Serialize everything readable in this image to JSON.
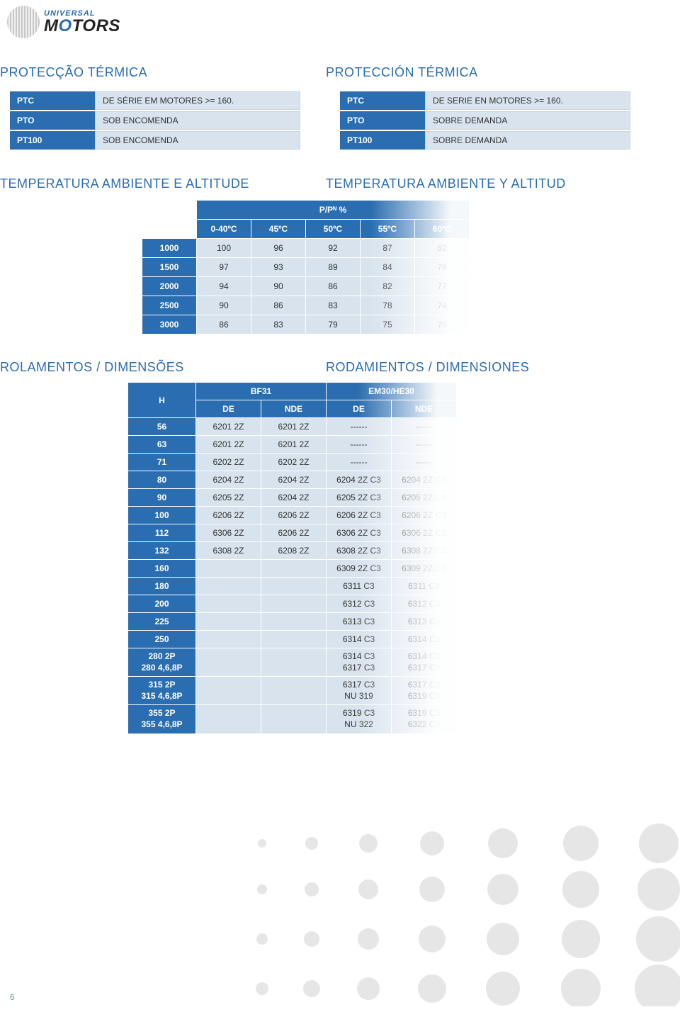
{
  "logo": {
    "top": "UNIVERSAL",
    "main_pre": "M",
    "main_o": "O",
    "main_post": "TORS"
  },
  "sec1": {
    "left": "PROTECÇÃO TÉRMICA",
    "right": "PROTECCIÓN TÉRMICA"
  },
  "ptable_left": {
    "rows": [
      {
        "k": "PTC",
        "v": "DE SÉRIE EM MOTORES >= 160."
      },
      {
        "k": "PTO",
        "v": "SOB ENCOMENDA"
      },
      {
        "k": "PT100",
        "v": "SOB ENCOMENDA"
      }
    ]
  },
  "ptable_right": {
    "rows": [
      {
        "k": "PTC",
        "v": "DE SERIE EN MOTORES >= 160."
      },
      {
        "k": "PTO",
        "v": "SOBRE DEMANDA"
      },
      {
        "k": "PT100",
        "v": "SOBRE DEMANDA"
      }
    ]
  },
  "sec2": {
    "left": "TEMPERATURA AMBIENTE E ALTITUDE",
    "right": "TEMPERATURA AMBIENTE Y ALTITUD"
  },
  "temp": {
    "title": "P/Pᴺ %",
    "cols": [
      "0-40ºC",
      "45ºC",
      "50ºC",
      "55ºC",
      "60ºC"
    ],
    "rows": [
      {
        "h": "1000",
        "v": [
          "100",
          "96",
          "92",
          "87",
          "82"
        ]
      },
      {
        "h": "1500",
        "v": [
          "97",
          "93",
          "89",
          "84",
          "79"
        ]
      },
      {
        "h": "2000",
        "v": [
          "94",
          "90",
          "86",
          "82",
          "77"
        ]
      },
      {
        "h": "2500",
        "v": [
          "90",
          "86",
          "83",
          "78",
          "74"
        ]
      },
      {
        "h": "3000",
        "v": [
          "86",
          "83",
          "79",
          "75",
          "70"
        ]
      }
    ]
  },
  "sec3": {
    "left": "ROLAMENTOS / DIMENSÕES",
    "right": "RODAMIENTOS / DIMENSIONES"
  },
  "bear": {
    "h_label": "H",
    "group1": "BF31",
    "group2": "EM30/HE30",
    "sub": [
      "DE",
      "NDE",
      "DE",
      "NDE"
    ],
    "rows": [
      {
        "h": "56",
        "v": [
          "6201 2Z",
          "6201 2Z",
          "------",
          "------"
        ]
      },
      {
        "h": "63",
        "v": [
          "6201 2Z",
          "6201 2Z",
          "------",
          "------"
        ]
      },
      {
        "h": "71",
        "v": [
          "6202 2Z",
          "6202 2Z",
          "------",
          "------"
        ]
      },
      {
        "h": "80",
        "v": [
          "6204 2Z",
          "6204 2Z",
          "6204  2Z C3",
          "6204  2Z C3"
        ]
      },
      {
        "h": "90",
        "v": [
          "6205 2Z",
          "6204 2Z",
          "6205  2Z C3",
          "6205  2Z C3"
        ]
      },
      {
        "h": "100",
        "v": [
          "6206 2Z",
          "6206 2Z",
          "6206  2Z C3",
          "6206  2Z C3"
        ]
      },
      {
        "h": "112",
        "v": [
          "6306 2Z",
          "6206 2Z",
          "6306  2Z C3",
          "6306  2Z C3"
        ]
      },
      {
        "h": "132",
        "v": [
          "6308 2Z",
          "6208 2Z",
          "6308  2Z C3",
          "6308  2Z C3"
        ]
      },
      {
        "h": "160",
        "v": [
          "",
          "",
          "6309  2Z C3",
          "6309  2Z C3"
        ]
      },
      {
        "h": "180",
        "v": [
          "",
          "",
          "6311 C3",
          "6311 C3"
        ]
      },
      {
        "h": "200",
        "v": [
          "",
          "",
          "6312 C3",
          "6312 C3"
        ]
      },
      {
        "h": "225",
        "v": [
          "",
          "",
          "6313 C3",
          "6313 C3"
        ]
      },
      {
        "h": "250",
        "v": [
          "",
          "",
          "6314 C3",
          "6314 C3"
        ]
      },
      {
        "h": "280  2P\n280  4,6,8P",
        "v": [
          "",
          "",
          "6314 C3\n6317 C3",
          "6314 C3\n6317 C3"
        ],
        "multi": true
      },
      {
        "h": "315  2P\n315  4,6,8P",
        "v": [
          "",
          "",
          "6317 C3\nNU 319",
          "6317 C3\n6319 C3"
        ],
        "multi": true
      },
      {
        "h": "355  2P\n355  4,6,8P",
        "v": [
          "",
          "",
          "6319 C3\nNU 322",
          "6319 C3\n6322 C3"
        ],
        "multi": true
      }
    ]
  },
  "page": "6",
  "colors": {
    "brand_blue": "#2a6db0",
    "cell_bg": "#d8e3ee",
    "cell_border": "#c5d2e0",
    "dot": "#e6e6e6",
    "text": "#333333"
  }
}
